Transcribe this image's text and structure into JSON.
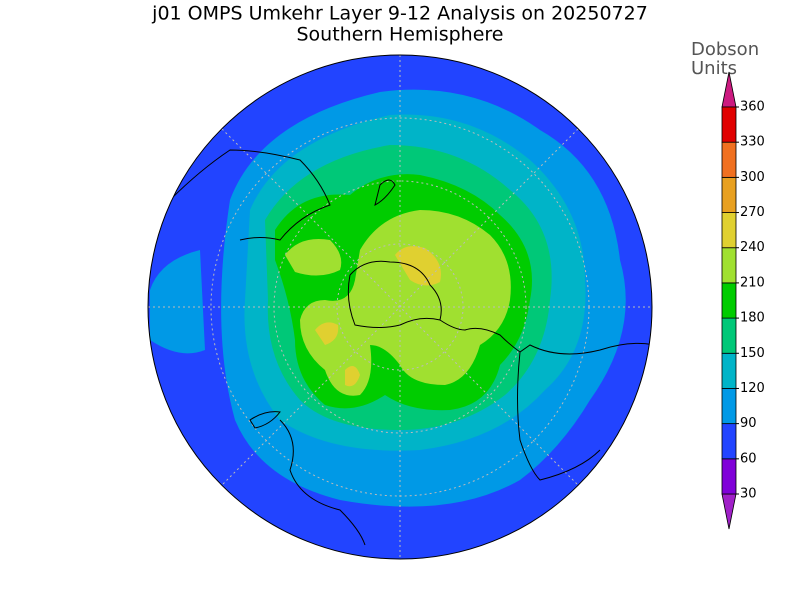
{
  "title": "j01 OMPS Umkehr Layer 9-12 Analysis on 20250727",
  "subtitle": "Southern Hemisphere",
  "colorbar": {
    "label": [
      "Dobson",
      "Units"
    ],
    "levels": [
      30,
      60,
      90,
      120,
      150,
      180,
      210,
      240,
      270,
      300,
      330,
      360
    ],
    "colors": [
      "#a020c8",
      "#8000d8",
      "#2244ff",
      "#0099e6",
      "#00b4c8",
      "#00c878",
      "#00cc00",
      "#a0e030",
      "#e0d030",
      "#e8a020",
      "#f07020",
      "#e00000",
      "#cc1a80"
    ]
  }
}
